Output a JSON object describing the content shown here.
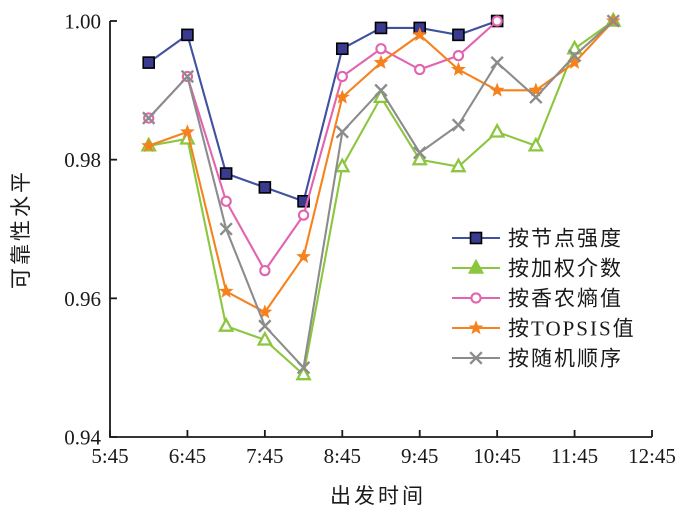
{
  "chart_data": {
    "type": "line",
    "title": "",
    "xlabel": "出发时间",
    "ylabel": "可靠性水平",
    "x_tick_labels": [
      "5:45",
      "6:45",
      "7:45",
      "8:45",
      "9:45",
      "10:45",
      "11:45",
      "12:45"
    ],
    "y_tick_labels": [
      "0.94",
      "0.96",
      "0.98",
      "1.00"
    ],
    "ylim": [
      0.94,
      1.0
    ],
    "xlim_time": [
      "5:45",
      "12:45"
    ],
    "grid": false,
    "legend_position": "inside-right",
    "categories": [
      "6:15",
      "6:45",
      "7:15",
      "7:45",
      "8:15",
      "8:45",
      "9:15",
      "9:45",
      "10:15",
      "10:45",
      "11:15",
      "11:45",
      "12:15"
    ],
    "series": [
      {
        "name": "按节点强度",
        "marker": "square",
        "line_color": "#3F51A0",
        "marker_fill": "#3A3A8F",
        "marker_edge": "#000000",
        "values": [
          0.994,
          0.998,
          0.978,
          0.976,
          0.974,
          0.996,
          0.999,
          0.999,
          0.998,
          1.0,
          null,
          null,
          null
        ]
      },
      {
        "name": "按加权介数",
        "marker": "triangle",
        "line_color": "#8CC63F",
        "marker_fill": "#ffffff",
        "marker_edge": "#8CC63F",
        "values": [
          0.982,
          0.983,
          0.956,
          0.954,
          0.949,
          0.979,
          0.989,
          0.98,
          0.979,
          0.984,
          0.982,
          0.996,
          1.0
        ]
      },
      {
        "name": "按香农熵值",
        "marker": "circle",
        "line_color": "#E263AF",
        "marker_fill": "#ffffff",
        "marker_edge": "#E263AF",
        "values": [
          0.986,
          0.992,
          0.974,
          0.964,
          0.972,
          0.992,
          0.996,
          0.993,
          0.995,
          1.0,
          null,
          null,
          null
        ]
      },
      {
        "name": "按TOPSIS值",
        "marker": "star",
        "line_color": "#F5821E",
        "marker_fill": "#F5821E",
        "marker_edge": "#F5821E",
        "values": [
          0.982,
          0.984,
          0.961,
          0.958,
          0.966,
          0.989,
          0.994,
          0.998,
          0.993,
          0.99,
          0.99,
          0.994,
          1.0
        ]
      },
      {
        "name": "按随机顺序",
        "marker": "x",
        "line_color": "#8C8C8C",
        "marker_fill": "#8C8C8C",
        "marker_edge": "#8C8C8C",
        "values": [
          0.986,
          0.992,
          0.97,
          0.956,
          0.95,
          0.984,
          0.99,
          0.981,
          0.985,
          0.994,
          0.989,
          0.995,
          1.0
        ]
      }
    ]
  }
}
